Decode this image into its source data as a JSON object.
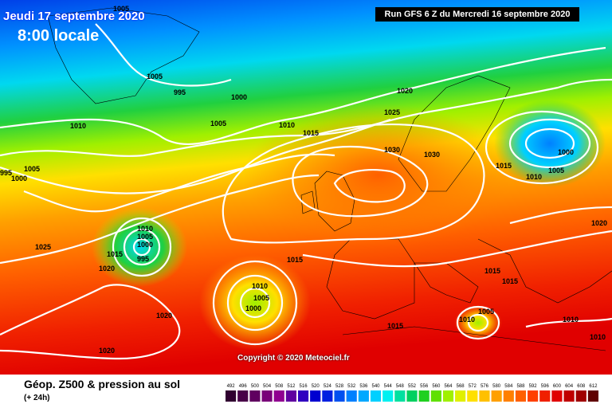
{
  "header": {
    "date_label": "Jeudi 17 septembre 2020",
    "time_label": "8:00 locale",
    "run_label": "Run GFS 6 Z du Mercredi 16 septembre 2020"
  },
  "copyright": "Copyright © 2020 Meteociel.fr",
  "footer": {
    "title": "Géop. Z500 & pression au sol",
    "subtitle": "(+ 24h)"
  },
  "scale_labels": [
    "492",
    "496",
    "500",
    "504",
    "508",
    "512",
    "516",
    "520",
    "524",
    "528",
    "532",
    "536",
    "540",
    "544",
    "548",
    "552",
    "556",
    "560",
    "564",
    "568",
    "572",
    "576",
    "580",
    "584",
    "588",
    "592",
    "596",
    "600",
    "604",
    "608",
    "612"
  ],
  "scale_colors": [
    "#300030",
    "#480048",
    "#600060",
    "#780078",
    "#900090",
    "#6000a0",
    "#3000c0",
    "#0000d0",
    "#0020e0",
    "#0050f0",
    "#0080ff",
    "#00a8ff",
    "#00d0ff",
    "#00f0f0",
    "#00e0a0",
    "#00d060",
    "#20d020",
    "#60e000",
    "#a0f000",
    "#e0f000",
    "#ffe000",
    "#ffc000",
    "#ffa000",
    "#ff8000",
    "#ff6000",
    "#ff4000",
    "#f02000",
    "#e00000",
    "#c00000",
    "#a00000",
    "#600000"
  ],
  "isobar_labels": [
    {
      "text": "1005"
    },
    {
      "text": "1005"
    },
    {
      "text": "995"
    },
    {
      "text": "1000"
    },
    {
      "text": "1005"
    },
    {
      "text": "1010"
    },
    {
      "text": "1010"
    },
    {
      "text": "1015"
    },
    {
      "text": "1020"
    },
    {
      "text": "1025"
    },
    {
      "text": "1030"
    },
    {
      "text": "1030"
    },
    {
      "text": "1015"
    },
    {
      "text": "1010"
    },
    {
      "text": "1005"
    },
    {
      "text": "1000"
    },
    {
      "text": "995"
    },
    {
      "text": "1005"
    },
    {
      "text": "1000"
    },
    {
      "text": "1025"
    },
    {
      "text": "1015"
    },
    {
      "text": "1020"
    },
    {
      "text": "1010"
    },
    {
      "text": "1005"
    },
    {
      "text": "1000"
    },
    {
      "text": "995"
    },
    {
      "text": "1015"
    },
    {
      "text": "1010"
    },
    {
      "text": "1005"
    },
    {
      "text": "1000"
    },
    {
      "text": "1020"
    },
    {
      "text": "1020"
    },
    {
      "text": "1015"
    },
    {
      "text": "1015"
    },
    {
      "text": "1015"
    },
    {
      "text": "1005"
    },
    {
      "text": "1010"
    },
    {
      "text": "1010"
    },
    {
      "text": "1010"
    },
    {
      "text": "1020"
    }
  ]
}
